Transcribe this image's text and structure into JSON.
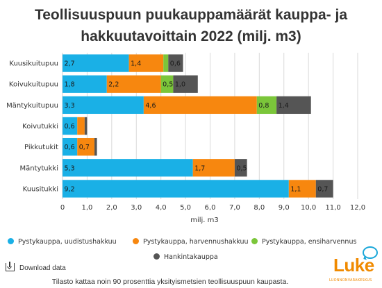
{
  "chart_data": {
    "type": "bar",
    "orientation": "horizontal",
    "stacked": true,
    "title": "Teollisuuspuun puukauppamäärät kauppa- ja hakkuutavoittain 2022 (milj. m3)",
    "xlabel": "milj. m3",
    "xlim": [
      0,
      12
    ],
    "xticks": [
      "0",
      "1,0",
      "2,0",
      "3,0",
      "4,0",
      "5,0",
      "6,0",
      "7,0",
      "8,0",
      "9,0",
      "10,0",
      "11,0",
      "12,0"
    ],
    "categories": [
      "Kuusikuitupuu",
      "Koivukuitupuu",
      "Mäntykuitupuu",
      "Koivutukki",
      "Pikkutukit",
      "Mäntytukki",
      "Kuusitukki"
    ],
    "series": [
      {
        "name": "Pystykauppa, uudistushakkuu",
        "color": "#1ab0e6",
        "values": [
          2.7,
          1.8,
          3.3,
          0.6,
          0.6,
          5.3,
          9.2
        ],
        "labels": [
          "2,7",
          "1,8",
          "3,3",
          "0,6",
          "0,6",
          "5,3",
          "9,2"
        ]
      },
      {
        "name": "Pystykauppa, harvennushakkuu",
        "color": "#f7870f",
        "values": [
          1.4,
          2.2,
          4.6,
          0.3,
          0.7,
          1.7,
          1.1
        ],
        "labels": [
          "1,4",
          "2,2",
          "4,6",
          "",
          "0,7",
          "1,7",
          "1,1"
        ]
      },
      {
        "name": "Pystykauppa, ensiharvennus",
        "color": "#7bc63a",
        "values": [
          0.2,
          0.5,
          0.8,
          0.0,
          0.0,
          0.0,
          0.0
        ],
        "labels": [
          "",
          "0,5",
          "0,8",
          "",
          "",
          "",
          ""
        ]
      },
      {
        "name": "Hankintakauppa",
        "color": "#555555",
        "values": [
          0.6,
          1.0,
          1.4,
          0.1,
          0.1,
          0.5,
          0.7
        ],
        "labels": [
          "0,6",
          "1,0",
          "1,4",
          "",
          "",
          "0,5",
          "0,7"
        ]
      }
    ],
    "grid": true,
    "legend_position": "bottom"
  },
  "download_label": "Download data",
  "footnote": "Tilasto kattaa noin 90 prosenttia yksityismetsien teollisuuspuun kaupasta.",
  "logo": {
    "word": "Luke",
    "subtitle": "LUONNONVARAKESKUS",
    "accent": "#f08a00",
    "bubble_color": "#1aa7d9"
  }
}
